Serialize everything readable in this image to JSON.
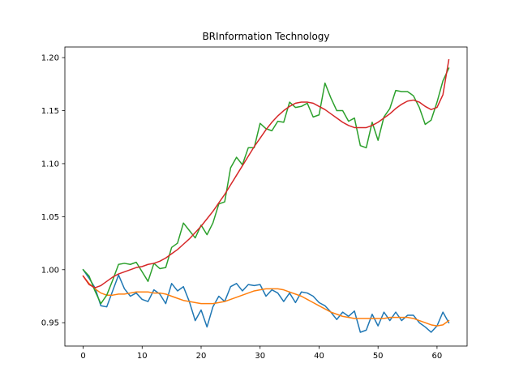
{
  "chart_data": {
    "type": "line",
    "title": "BRInformation Technology",
    "xlabel": "",
    "ylabel": "",
    "xlim": [
      -3.1,
      65.1
    ],
    "ylim": [
      0.928,
      1.21
    ],
    "xticks": [
      0,
      10,
      20,
      30,
      40,
      50,
      60
    ],
    "yticks": [
      0.95,
      1.0,
      1.05,
      1.1,
      1.15,
      1.2
    ],
    "ytick_labels": [
      "0.95",
      "1.00",
      "1.05",
      "1.10",
      "1.15",
      "1.20"
    ],
    "grid": false,
    "legend": "none",
    "x": [
      0,
      1,
      2,
      3,
      4,
      5,
      6,
      7,
      8,
      9,
      10,
      11,
      12,
      13,
      14,
      15,
      16,
      17,
      18,
      19,
      20,
      21,
      22,
      23,
      24,
      25,
      26,
      27,
      28,
      29,
      30,
      31,
      32,
      33,
      34,
      35,
      36,
      37,
      38,
      39,
      40,
      41,
      42,
      43,
      44,
      45,
      46,
      47,
      48,
      49,
      50,
      51,
      52,
      53,
      54,
      55,
      56,
      57,
      58,
      59,
      60,
      61,
      62
    ],
    "series": [
      {
        "color": "#1f77b4",
        "values": [
          1.0,
          0.992,
          0.983,
          0.966,
          0.965,
          0.98,
          0.995,
          0.982,
          0.975,
          0.978,
          0.972,
          0.97,
          0.981,
          0.977,
          0.968,
          0.987,
          0.98,
          0.984,
          0.97,
          0.952,
          0.962,
          0.946,
          0.965,
          0.975,
          0.97,
          0.984,
          0.987,
          0.98,
          0.986,
          0.985,
          0.986,
          0.975,
          0.981,
          0.978,
          0.97,
          0.978,
          0.969,
          0.979,
          0.978,
          0.975,
          0.969,
          0.966,
          0.96,
          0.953,
          0.96,
          0.956,
          0.961,
          0.941,
          0.943,
          0.958,
          0.947,
          0.96,
          0.952,
          0.96,
          0.952,
          0.957,
          0.957,
          0.95,
          0.946,
          0.941,
          0.947,
          0.96,
          0.95
        ]
      },
      {
        "color": "#ff7f0e",
        "values": [
          0.994,
          0.987,
          0.982,
          0.978,
          0.976,
          0.976,
          0.977,
          0.977,
          0.978,
          0.979,
          0.979,
          0.979,
          0.978,
          0.978,
          0.977,
          0.975,
          0.973,
          0.971,
          0.97,
          0.969,
          0.968,
          0.968,
          0.968,
          0.969,
          0.97,
          0.972,
          0.974,
          0.976,
          0.978,
          0.98,
          0.981,
          0.982,
          0.982,
          0.982,
          0.981,
          0.979,
          0.977,
          0.975,
          0.972,
          0.969,
          0.966,
          0.963,
          0.96,
          0.958,
          0.956,
          0.955,
          0.954,
          0.954,
          0.954,
          0.954,
          0.954,
          0.954,
          0.955,
          0.955,
          0.955,
          0.955,
          0.954,
          0.952,
          0.95,
          0.948,
          0.947,
          0.948,
          0.952
        ]
      },
      {
        "color": "#2ca02c",
        "values": [
          1.0,
          0.994,
          0.98,
          0.968,
          0.976,
          0.99,
          1.005,
          1.006,
          1.005,
          1.007,
          0.998,
          0.989,
          1.006,
          1.001,
          1.002,
          1.021,
          1.025,
          1.044,
          1.037,
          1.03,
          1.042,
          1.033,
          1.044,
          1.062,
          1.064,
          1.096,
          1.106,
          1.099,
          1.115,
          1.115,
          1.138,
          1.133,
          1.131,
          1.14,
          1.139,
          1.158,
          1.153,
          1.154,
          1.157,
          1.144,
          1.146,
          1.176,
          1.162,
          1.15,
          1.15,
          1.14,
          1.143,
          1.117,
          1.115,
          1.139,
          1.122,
          1.144,
          1.152,
          1.169,
          1.168,
          1.168,
          1.164,
          1.153,
          1.137,
          1.141,
          1.158,
          1.178,
          1.19
        ]
      },
      {
        "color": "#d62728",
        "values": [
          0.994,
          0.986,
          0.983,
          0.985,
          0.989,
          0.993,
          0.996,
          0.998,
          1.0,
          1.002,
          1.003,
          1.005,
          1.006,
          1.008,
          1.011,
          1.015,
          1.019,
          1.024,
          1.029,
          1.035,
          1.041,
          1.048,
          1.055,
          1.063,
          1.071,
          1.08,
          1.089,
          1.098,
          1.107,
          1.116,
          1.124,
          1.132,
          1.139,
          1.145,
          1.15,
          1.154,
          1.157,
          1.158,
          1.158,
          1.157,
          1.154,
          1.151,
          1.147,
          1.143,
          1.139,
          1.136,
          1.134,
          1.134,
          1.134,
          1.136,
          1.139,
          1.143,
          1.147,
          1.152,
          1.156,
          1.159,
          1.16,
          1.158,
          1.154,
          1.151,
          1.153,
          1.165,
          1.198
        ]
      }
    ]
  }
}
